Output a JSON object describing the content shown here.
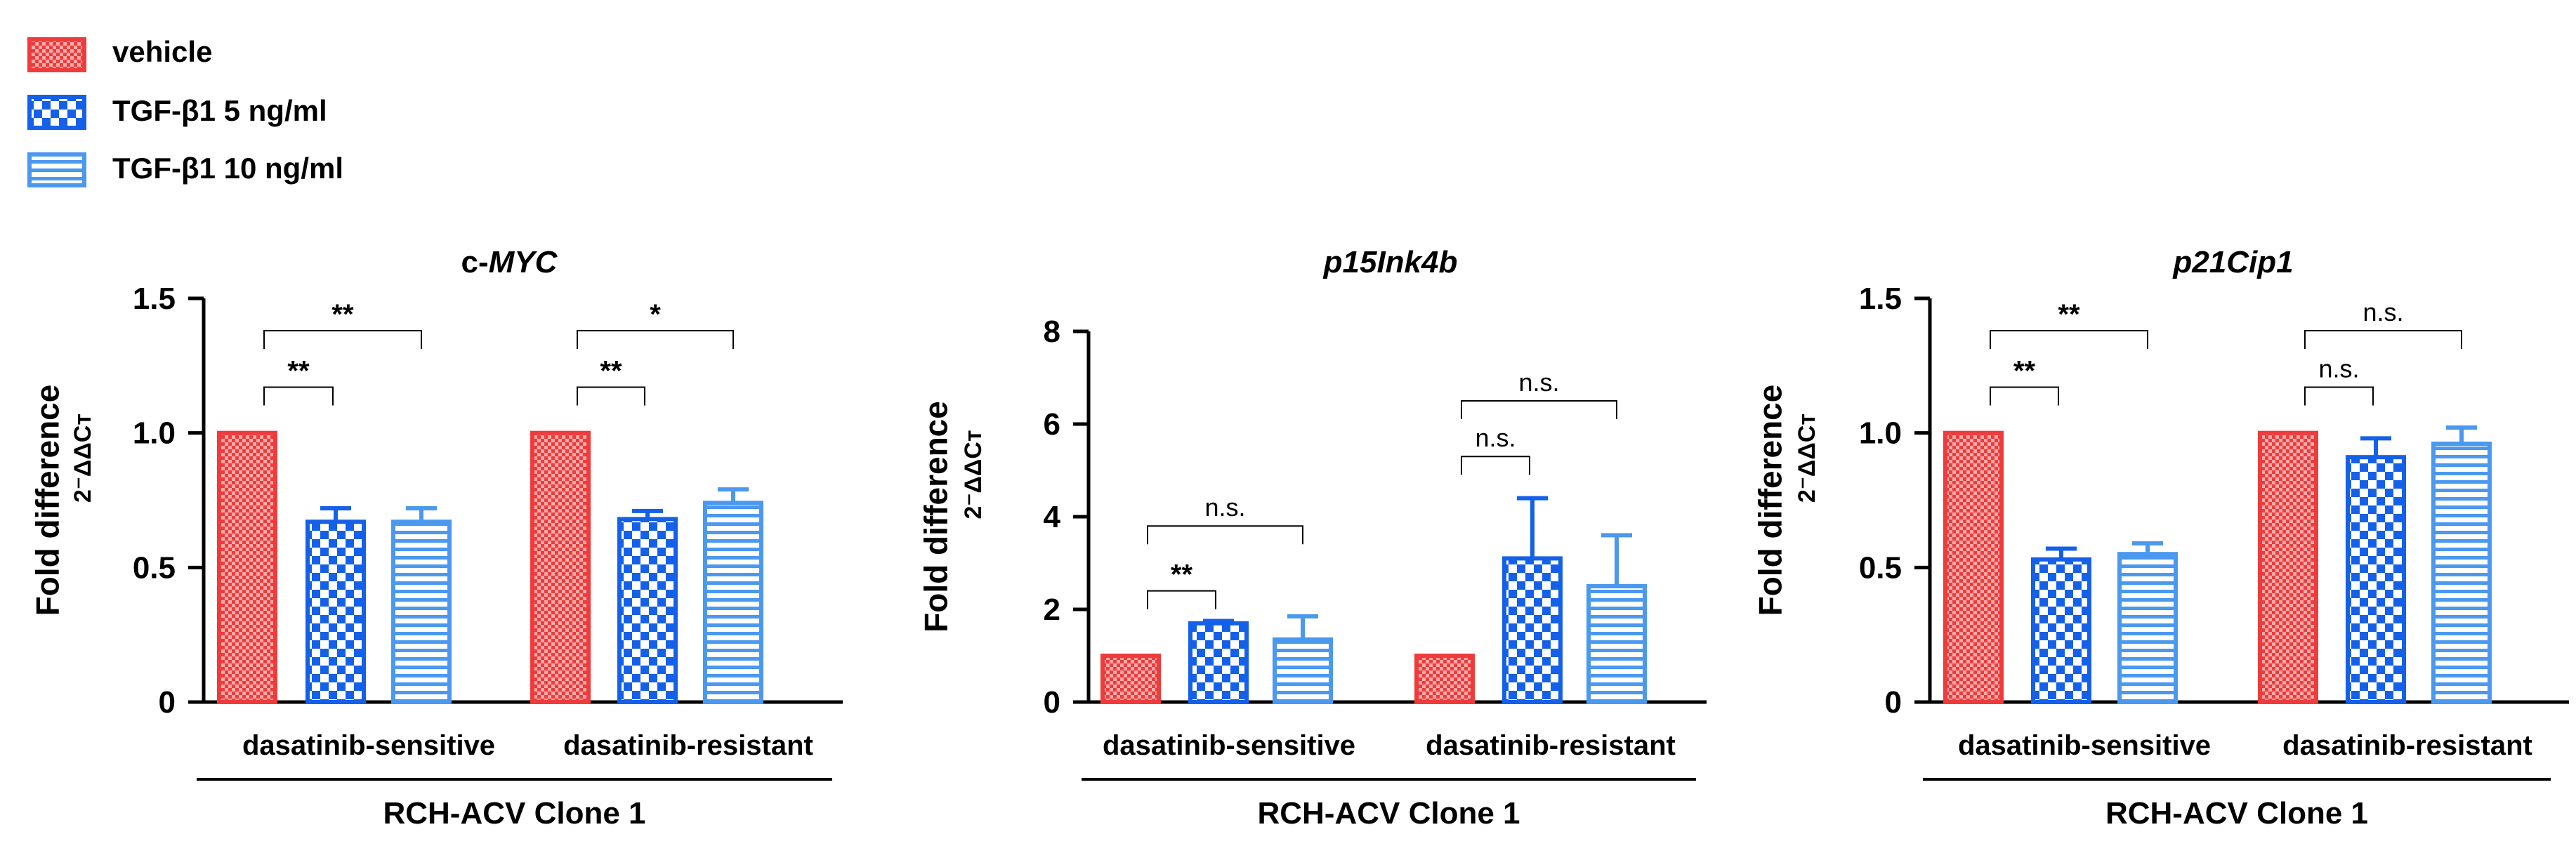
{
  "legend": [
    {
      "label": "vehicle",
      "pattern": "check-small",
      "color": "#ef3b3b"
    },
    {
      "label": "TGF-β1 5 ng/ml",
      "pattern": "check-large",
      "color": "#1560e8"
    },
    {
      "label": "TGF-β1 10 ng/ml",
      "pattern": "stripes",
      "color": "#4b98ef"
    }
  ],
  "colors": {
    "vehicle": "#ef3b3b",
    "tgf5": "#1560e8",
    "tgf10": "#4b98ef"
  },
  "chart_data": [
    {
      "type": "bar",
      "title": "c-MYC",
      "title_plain": "c-",
      "title_italic": "MYC",
      "ylabel": "Fold difference",
      "ylabel_sub": "2⁻ΔΔCт",
      "ylim": [
        0,
        1.5
      ],
      "yticks": [
        0,
        0.5,
        1.0,
        1.5
      ],
      "ytick_labels": [
        "0",
        "0.5",
        "1.0",
        "1.5"
      ],
      "categories": [
        "dasatinib-sensitive",
        "dasatinib-resistant"
      ],
      "group_label": "RCH-ACV Clone 1",
      "series": [
        {
          "name": "vehicle",
          "values": [
            1.0,
            1.0
          ],
          "errors": [
            0,
            0
          ]
        },
        {
          "name": "TGF-β1 5 ng/ml",
          "values": [
            0.67,
            0.68
          ],
          "errors": [
            0.05,
            0.03
          ]
        },
        {
          "name": "TGF-β1 10 ng/ml",
          "values": [
            0.67,
            0.74
          ],
          "errors": [
            0.05,
            0.05
          ]
        }
      ],
      "significance": [
        {
          "group": 0,
          "from": 0,
          "to": 1,
          "label": "**",
          "level": 1.17
        },
        {
          "group": 0,
          "from": 0,
          "to": 2,
          "label": "**",
          "level": 1.38
        },
        {
          "group": 1,
          "from": 0,
          "to": 1,
          "label": "**",
          "level": 1.17
        },
        {
          "group": 1,
          "from": 0,
          "to": 2,
          "label": "*",
          "level": 1.38
        }
      ]
    },
    {
      "type": "bar",
      "title": "p15Ink4b",
      "title_plain": "",
      "title_italic": "p15Ink4b",
      "ylabel": "Fold difference",
      "ylabel_sub": "2⁻ΔΔCт",
      "ylim": [
        0,
        8
      ],
      "yticks": [
        0,
        2,
        4,
        6,
        8
      ],
      "ytick_labels": [
        "0",
        "2",
        "4",
        "6",
        "8"
      ],
      "categories": [
        "dasatinib-sensitive",
        "dasatinib-resistant"
      ],
      "group_label": "RCH-ACV Clone 1",
      "series": [
        {
          "name": "vehicle",
          "values": [
            1.0,
            1.0
          ],
          "errors": [
            0,
            0
          ]
        },
        {
          "name": "TGF-β1 5 ng/ml",
          "values": [
            1.7,
            3.1
          ],
          "errors": [
            0.05,
            1.3
          ]
        },
        {
          "name": "TGF-β1 10 ng/ml",
          "values": [
            1.35,
            2.5
          ],
          "errors": [
            0.5,
            1.1
          ]
        }
      ],
      "significance": [
        {
          "group": 0,
          "from": 0,
          "to": 1,
          "label": "**",
          "level": 2.4
        },
        {
          "group": 0,
          "from": 0,
          "to": 2,
          "label": "n.s.",
          "level": 3.8
        },
        {
          "group": 1,
          "from": 0,
          "to": 1,
          "label": "n.s.",
          "level": 5.3
        },
        {
          "group": 1,
          "from": 0,
          "to": 2,
          "label": "n.s.",
          "level": 6.5
        }
      ]
    },
    {
      "type": "bar",
      "title": "p21Cip1",
      "title_plain": "",
      "title_italic": "p21Cip1",
      "ylabel": "Fold difference",
      "ylabel_sub": "2⁻ΔΔCт",
      "ylim": [
        0,
        1.5
      ],
      "yticks": [
        0,
        0.5,
        1.0,
        1.5
      ],
      "ytick_labels": [
        "0",
        "0.5",
        "1.0",
        "1.5"
      ],
      "categories": [
        "dasatinib-sensitive",
        "dasatinib-resistant"
      ],
      "group_label": "RCH-ACV Clone 1",
      "series": [
        {
          "name": "vehicle",
          "values": [
            1.0,
            1.0
          ],
          "errors": [
            0,
            0
          ]
        },
        {
          "name": "TGF-β1 5 ng/ml",
          "values": [
            0.53,
            0.91
          ],
          "errors": [
            0.04,
            0.07
          ]
        },
        {
          "name": "TGF-β1 10 ng/ml",
          "values": [
            0.55,
            0.96
          ],
          "errors": [
            0.04,
            0.06
          ]
        }
      ],
      "significance": [
        {
          "group": 0,
          "from": 0,
          "to": 1,
          "label": "**",
          "level": 1.17
        },
        {
          "group": 0,
          "from": 0,
          "to": 2,
          "label": "**",
          "level": 1.38
        },
        {
          "group": 1,
          "from": 0,
          "to": 1,
          "label": "n.s.",
          "level": 1.17
        },
        {
          "group": 1,
          "from": 0,
          "to": 2,
          "label": "n.s.",
          "level": 1.38
        }
      ]
    }
  ]
}
